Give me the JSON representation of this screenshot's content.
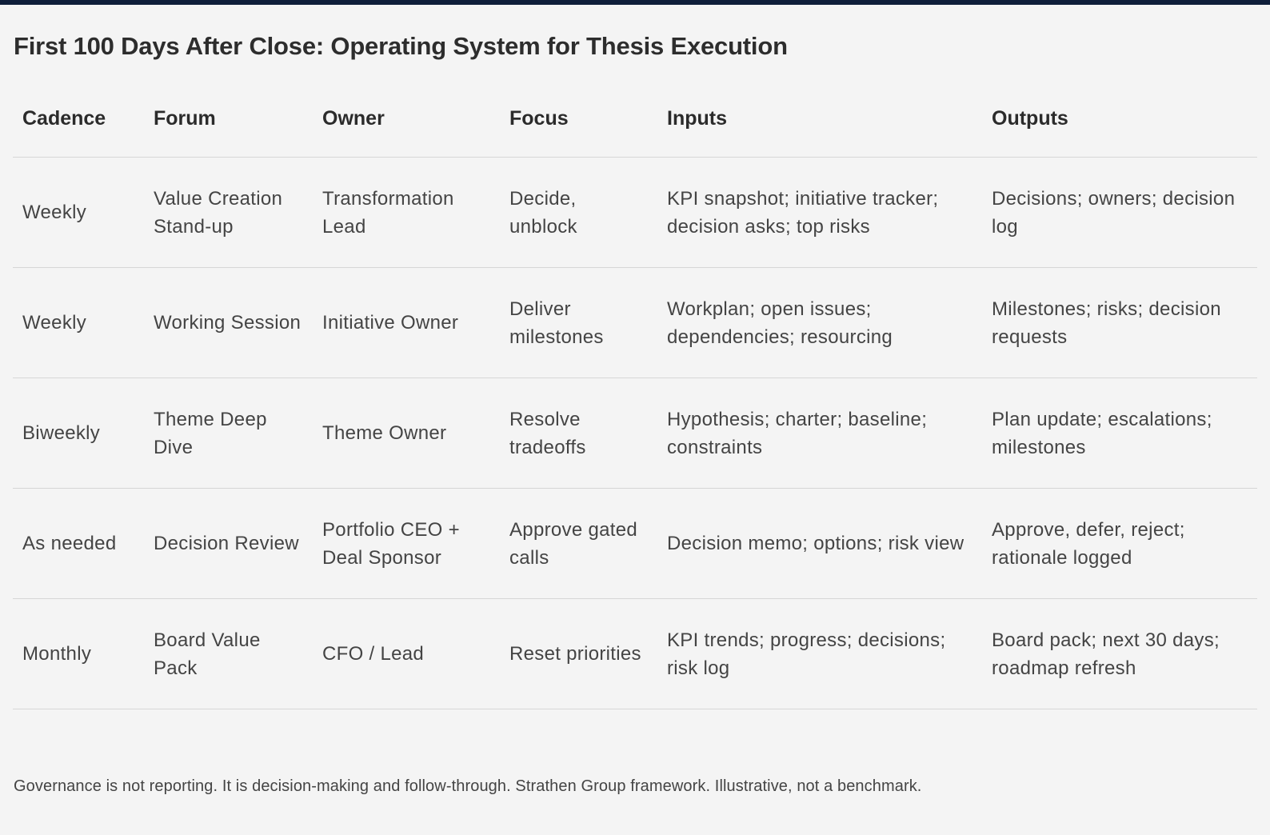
{
  "title": "First 100 Days After Close: Operating System for Thesis Execution",
  "table": {
    "headers": [
      "Cadence",
      "Forum",
      "Owner",
      "Focus",
      "Inputs",
      "Outputs"
    ],
    "rows": [
      [
        "Weekly",
        "Value Creation Stand-up",
        "Transformation Lead",
        "Decide, unblock",
        "KPI snapshot; initiative tracker; decision asks; top risks",
        "Decisions; owners; decision log"
      ],
      [
        "Weekly",
        "Working Session",
        "Initiative Owner",
        "Deliver milestones",
        "Workplan; open issues; dependencies; resourcing",
        "Milestones; risks; decision requests"
      ],
      [
        "Biweekly",
        "Theme Deep Dive",
        "Theme Owner",
        "Resolve tradeoffs",
        "Hypothesis; charter; baseline; constraints",
        "Plan update; escalations; milestones"
      ],
      [
        "As needed",
        "Decision Review",
        "Portfolio CEO + Deal Sponsor",
        "Approve gated calls",
        "Decision memo; options; risk view",
        "Approve, defer, reject; rationale logged"
      ],
      [
        "Monthly",
        "Board Value Pack",
        "CFO / Lead",
        "Reset priorities",
        "KPI trends; progress; decisions; risk log",
        "Board pack; next 30 days; roadmap refresh"
      ]
    ]
  },
  "footnote": "Governance is not reporting. It is decision-making and follow-through. Strathen Group framework. Illustrative, not a benchmark.",
  "colors": {
    "top_bar": "#0f1e3a",
    "background": "#f4f4f4",
    "rule": "#d6d6d6"
  }
}
